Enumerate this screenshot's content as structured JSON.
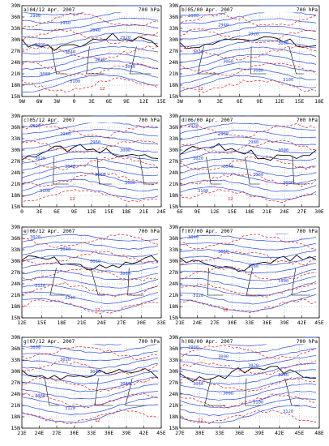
{
  "figure": {
    "level": "700 hPa",
    "panels": [
      {
        "id": "a",
        "title": "a)04/12 Apr. 2007",
        "lat_labels": [
          "39N",
          "36N",
          "33N",
          "30N",
          "27N",
          "24N",
          "21N",
          "18N",
          "15N"
        ],
        "lon_labels": [
          "9W",
          "6W",
          "3W",
          "0",
          "3E",
          "6E",
          "9E",
          "12E",
          "15E"
        ],
        "contour_labels": [
          "2980",
          "2960",
          "2940",
          "2920",
          "2900",
          "3040",
          "3020",
          "3060",
          "3080",
          "3100",
          "12"
        ]
      },
      {
        "id": "b",
        "title": "b)05/00 Apr. 2007",
        "lat_labels": [
          "39N",
          "36N",
          "33N",
          "30N",
          "27N",
          "24N",
          "21N",
          "18N",
          "15N"
        ],
        "lon_labels": [
          "3W",
          "0",
          "3E",
          "6E",
          "9E",
          "12E",
          "15E",
          "18E"
        ],
        "contour_labels": [
          "2960",
          "2940",
          "2920",
          "3000",
          "3020",
          "3060",
          "3080",
          "3100",
          "12"
        ]
      },
      {
        "id": "c",
        "title": "c)05/12 Apr. 2007",
        "lat_labels": [
          "39N",
          "36N",
          "33N",
          "30N",
          "27N",
          "24N",
          "21N",
          "18N",
          "15N"
        ],
        "lon_labels": [
          "0",
          "3E",
          "6E",
          "9E",
          "12E",
          "15E",
          "18E",
          "21E",
          "24E"
        ],
        "contour_labels": [
          "2920",
          "2940",
          "2960",
          "3000",
          "3020",
          "3040",
          "3060",
          "3080",
          "3100",
          "12"
        ]
      },
      {
        "id": "d",
        "title": "d)06/00 Apr. 2007",
        "lat_labels": [
          "39N",
          "36N",
          "33N",
          "30N",
          "27N",
          "24N",
          "21N",
          "18N",
          "15N"
        ],
        "lon_labels": [
          "6E",
          "9E",
          "12E",
          "15E",
          "18E",
          "21E",
          "24E",
          "27E",
          "30E"
        ],
        "contour_labels": [
          "2920",
          "2960",
          "2980",
          "3000",
          "3020",
          "3040",
          "3060",
          "3080",
          "3100",
          "12"
        ]
      },
      {
        "id": "e",
        "title": "e)06/12 Apr. 2007",
        "lat_labels": [
          "39N",
          "36N",
          "33N",
          "30N",
          "27N",
          "24N",
          "21N",
          "18N",
          "15N"
        ],
        "lon_labels": [
          "12E",
          "15E",
          "18E",
          "21E",
          "24E",
          "27E",
          "30E",
          "33E"
        ],
        "contour_labels": [
          "3020",
          "3040",
          "3060",
          "3080",
          "3120",
          "3140",
          "12"
        ]
      },
      {
        "id": "f",
        "title": "f)07/00 Apr. 2007",
        "lat_labels": [
          "39N",
          "36N",
          "33N",
          "30N",
          "27N",
          "24N",
          "21N",
          "18N",
          "15N"
        ],
        "lon_labels": [
          "21E",
          "24E",
          "27E",
          "30E",
          "33E",
          "36E",
          "39E",
          "42E",
          "45E"
        ],
        "contour_labels": [
          "3040",
          "3060",
          "3080",
          "3100",
          "3120",
          "12"
        ]
      },
      {
        "id": "g",
        "title": "g)07/12 Apr. 2007",
        "lat_labels": [
          "39N",
          "36N",
          "33N",
          "30N",
          "27N",
          "24N",
          "21N",
          "18N",
          "15N"
        ],
        "lon_labels": [
          "21E",
          "24E",
          "27E",
          "30E",
          "33E",
          "36E",
          "39E",
          "42E",
          "45E"
        ],
        "contour_labels": [
          "3000",
          "3020",
          "3040",
          "3060",
          "3080",
          "3120",
          "12"
        ]
      },
      {
        "id": "h",
        "title": "h)08/00 Apr. 2007",
        "lat_labels": [
          "39N",
          "36N",
          "33N",
          "30N",
          "27N",
          "24N",
          "21N",
          "18N",
          "15N"
        ],
        "lon_labels": [
          "27E",
          "30E",
          "33E",
          "36E",
          "39E",
          "42E",
          "45E",
          "48E"
        ],
        "contour_labels": [
          "2960",
          "3000",
          "3020",
          "3040",
          "3060",
          "3080",
          "3100",
          "3120",
          "12"
        ]
      }
    ]
  },
  "colors": {
    "geopotential": "#2b4fd6",
    "temperature": "#e01818",
    "coast": "#000000",
    "grid": "#888888"
  }
}
